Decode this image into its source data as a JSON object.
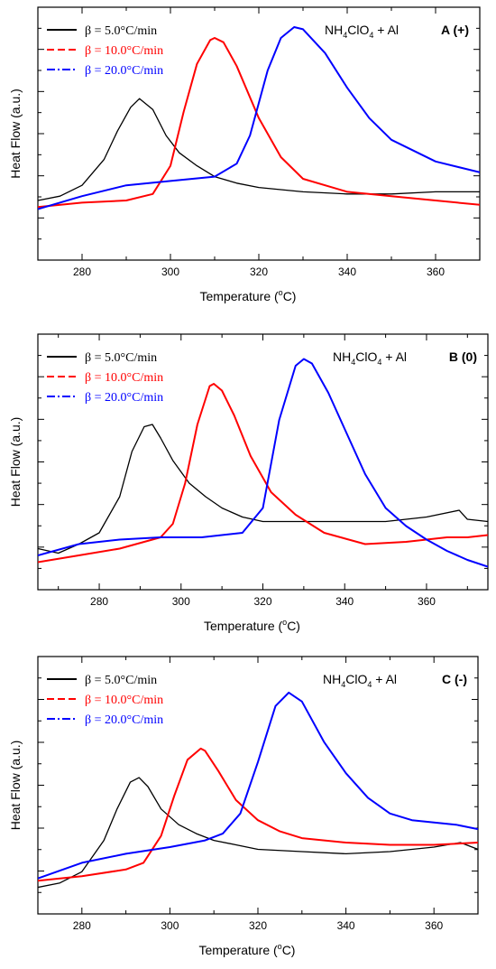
{
  "chart_data": [
    {
      "type": "line",
      "panel_label": "A",
      "panel_sign": "(+)",
      "sample": {
        "base": "NH",
        "sub1": "4",
        "mid": "ClO",
        "sub2": "4",
        "tail": " + Al"
      },
      "xlabel": "Temperature (",
      "xlabel_unit": "C)",
      "xlabel_sup": "o",
      "ylabel": "Heat Flow (a.u.)",
      "xlim": [
        270,
        370
      ],
      "ylim": [
        0,
        1
      ],
      "x_ticks": [
        280,
        300,
        320,
        340,
        360
      ],
      "grid": false,
      "legend_position": "top-left",
      "series": [
        {
          "name": "β = 5.0°C/min",
          "color": "#000000",
          "style": "solid",
          "x": [
            270,
            275,
            280,
            285,
            288,
            291,
            293,
            296,
            299,
            302,
            306,
            310,
            315,
            320,
            325,
            330,
            340,
            350,
            360,
            370
          ],
          "y": [
            0.2,
            0.22,
            0.27,
            0.39,
            0.52,
            0.63,
            0.67,
            0.62,
            0.5,
            0.42,
            0.36,
            0.31,
            0.28,
            0.26,
            0.25,
            0.24,
            0.23,
            0.23,
            0.24,
            0.24
          ]
        },
        {
          "name": "β = 10.0°C/min",
          "color": "#ff0000",
          "style": "dashed",
          "x": [
            270,
            280,
            290,
            296,
            300,
            303,
            306,
            309,
            310,
            312,
            315,
            320,
            325,
            330,
            340,
            350,
            360,
            370
          ],
          "y": [
            0.17,
            0.19,
            0.2,
            0.23,
            0.36,
            0.61,
            0.83,
            0.94,
            0.95,
            0.93,
            0.82,
            0.58,
            0.4,
            0.3,
            0.24,
            0.22,
            0.2,
            0.18
          ]
        },
        {
          "name": "β = 20.0°C/min",
          "color": "#0000ff",
          "style": "dashdot",
          "x": [
            270,
            280,
            290,
            300,
            310,
            315,
            318,
            322,
            325,
            328,
            330,
            335,
            340,
            345,
            350,
            360,
            370
          ],
          "y": [
            0.16,
            0.22,
            0.27,
            0.29,
            0.31,
            0.37,
            0.5,
            0.8,
            0.95,
            1.0,
            0.99,
            0.88,
            0.72,
            0.58,
            0.48,
            0.38,
            0.33
          ]
        }
      ]
    },
    {
      "type": "line",
      "panel_label": "B",
      "panel_sign": "(0)",
      "sample": {
        "base": "NH",
        "sub1": "4",
        "mid": "ClO",
        "sub2": "4",
        "tail": " + Al"
      },
      "xlabel": "Temperature (",
      "xlabel_unit": "C)",
      "xlabel_sup": "o",
      "ylabel": "Heat Flow (a.u.)",
      "xlim": [
        265,
        375
      ],
      "ylim": [
        0,
        1
      ],
      "x_ticks": [
        280,
        300,
        320,
        340,
        360
      ],
      "grid": false,
      "legend_position": "top-left",
      "series": [
        {
          "name": "β = 5.0°C/min",
          "color": "#000000",
          "style": "solid",
          "x": [
            265,
            270,
            275,
            280,
            285,
            288,
            291,
            293,
            295,
            298,
            302,
            306,
            310,
            315,
            320,
            330,
            340,
            350,
            360,
            368,
            370,
            375
          ],
          "y": [
            0.15,
            0.13,
            0.17,
            0.22,
            0.38,
            0.58,
            0.69,
            0.7,
            0.64,
            0.54,
            0.44,
            0.38,
            0.33,
            0.29,
            0.27,
            0.27,
            0.27,
            0.27,
            0.29,
            0.32,
            0.28,
            0.27
          ]
        },
        {
          "name": "β = 10.0°C/min",
          "color": "#ff0000",
          "style": "dashed",
          "x": [
            265,
            275,
            285,
            295,
            298,
            301,
            304,
            307,
            308,
            310,
            313,
            317,
            322,
            328,
            335,
            345,
            355,
            365,
            370,
            375
          ],
          "y": [
            0.09,
            0.12,
            0.15,
            0.2,
            0.26,
            0.44,
            0.7,
            0.87,
            0.88,
            0.85,
            0.74,
            0.56,
            0.4,
            0.3,
            0.22,
            0.17,
            0.18,
            0.2,
            0.2,
            0.21
          ]
        },
        {
          "name": "β = 20.0°C/min",
          "color": "#0000ff",
          "style": "dashdot",
          "x": [
            265,
            275,
            285,
            295,
            305,
            315,
            320,
            324,
            328,
            330,
            332,
            336,
            340,
            345,
            350,
            355,
            360,
            365,
            370,
            375
          ],
          "y": [
            0.12,
            0.17,
            0.19,
            0.2,
            0.2,
            0.22,
            0.33,
            0.72,
            0.96,
            0.99,
            0.97,
            0.84,
            0.68,
            0.48,
            0.33,
            0.25,
            0.19,
            0.14,
            0.1,
            0.07
          ]
        }
      ]
    },
    {
      "type": "line",
      "panel_label": "C",
      "panel_sign": "(-)",
      "sample": {
        "base": "NH",
        "sub1": "4",
        "mid": "ClO",
        "sub2": "4",
        "tail": " + Al"
      },
      "xlabel": "Temperature (",
      "xlabel_unit": "C)",
      "xlabel_sup": "o",
      "ylabel": "Heat Flow (a.u.)",
      "xlim": [
        270,
        370
      ],
      "ylim": [
        0,
        1
      ],
      "x_ticks": [
        280,
        300,
        320,
        340,
        360
      ],
      "grid": false,
      "legend_position": "top-left",
      "series": [
        {
          "name": "β = 5.0°C/min",
          "color": "#000000",
          "style": "solid",
          "x": [
            270,
            275,
            280,
            285,
            288,
            291,
            293,
            295,
            298,
            302,
            306,
            310,
            315,
            320,
            330,
            340,
            350,
            360,
            366,
            370
          ],
          "y": [
            0.07,
            0.09,
            0.14,
            0.28,
            0.42,
            0.54,
            0.56,
            0.52,
            0.42,
            0.35,
            0.31,
            0.28,
            0.26,
            0.24,
            0.23,
            0.22,
            0.23,
            0.25,
            0.27,
            0.24
          ]
        },
        {
          "name": "β = 10.0°C/min",
          "color": "#ff0000",
          "style": "dashed",
          "x": [
            270,
            280,
            290,
            294,
            298,
            301,
            304,
            307,
            308,
            311,
            315,
            320,
            325,
            330,
            340,
            350,
            360,
            370
          ],
          "y": [
            0.1,
            0.12,
            0.15,
            0.18,
            0.3,
            0.48,
            0.64,
            0.69,
            0.68,
            0.59,
            0.46,
            0.37,
            0.32,
            0.29,
            0.27,
            0.26,
            0.26,
            0.27
          ]
        },
        {
          "name": "β = 20.0°C/min",
          "color": "#0000ff",
          "style": "dashdot",
          "x": [
            270,
            280,
            290,
            300,
            308,
            312,
            316,
            320,
            324,
            327,
            330,
            335,
            340,
            345,
            350,
            355,
            360,
            365,
            370
          ],
          "y": [
            0.11,
            0.18,
            0.22,
            0.25,
            0.28,
            0.31,
            0.4,
            0.63,
            0.88,
            0.94,
            0.9,
            0.72,
            0.58,
            0.47,
            0.4,
            0.37,
            0.36,
            0.35,
            0.33
          ]
        }
      ]
    }
  ]
}
